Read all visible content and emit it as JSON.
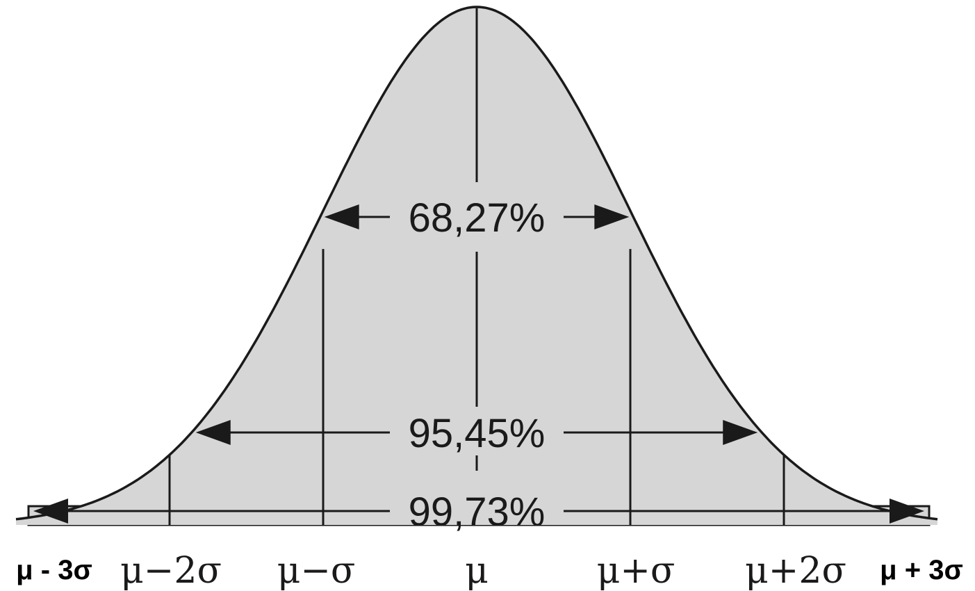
{
  "diagram": {
    "type": "normal-distribution",
    "mean": 0,
    "sd": 1,
    "x_range": [
      -3,
      3
    ],
    "colors": {
      "fill": "#d6d6d6",
      "stroke": "#1a1a1a"
    },
    "intervals": [
      {
        "k": 1,
        "label": "68,27%"
      },
      {
        "k": 2,
        "label": "95,45%"
      },
      {
        "k": 3,
        "label": "99,73%"
      }
    ],
    "tick_labels": [
      {
        "sigma": -3,
        "text": "μ - 3σ",
        "style": "bold"
      },
      {
        "sigma": -2,
        "text": "μ−2σ",
        "style": "serif"
      },
      {
        "sigma": -1,
        "text": "μ−σ",
        "style": "serif"
      },
      {
        "sigma": 0,
        "text": "μ",
        "style": "serif"
      },
      {
        "sigma": 1,
        "text": "μ+σ",
        "style": "serif"
      },
      {
        "sigma": 2,
        "text": "μ+2σ",
        "style": "serif"
      },
      {
        "sigma": 3,
        "text": "μ + 3σ",
        "style": "bold"
      }
    ]
  }
}
